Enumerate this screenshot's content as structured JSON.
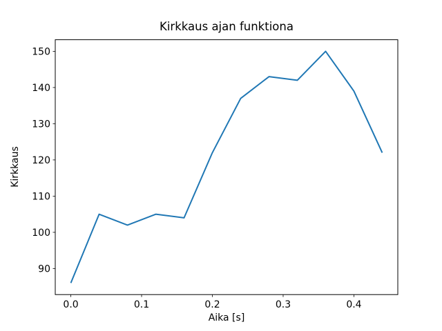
{
  "chart_data": {
    "type": "line",
    "title": "Kirkkaus ajan funktiona",
    "xlabel": "Aika [s]",
    "ylabel": "Kirkkaus",
    "x": [
      0.0,
      0.04,
      0.08,
      0.12,
      0.16,
      0.2,
      0.24,
      0.28,
      0.32,
      0.36,
      0.4,
      0.44
    ],
    "y": [
      86,
      105,
      102,
      105,
      104,
      122,
      137,
      143,
      142,
      150,
      139,
      122
    ],
    "xticks": [
      0.0,
      0.1,
      0.2,
      0.3,
      0.4
    ],
    "xtick_labels": [
      "0.0",
      "0.1",
      "0.2",
      "0.3",
      "0.4"
    ],
    "yticks": [
      90,
      100,
      110,
      120,
      130,
      140,
      150
    ],
    "ytick_labels": [
      "90",
      "100",
      "110",
      "120",
      "130",
      "140",
      "150"
    ],
    "xlim": [
      -0.022,
      0.462
    ],
    "ylim": [
      82.8,
      153.2
    ],
    "grid": false,
    "legend": "none",
    "line_color": "#1f77b4",
    "axis_color": "#000000",
    "background_color": "#ffffff"
  }
}
